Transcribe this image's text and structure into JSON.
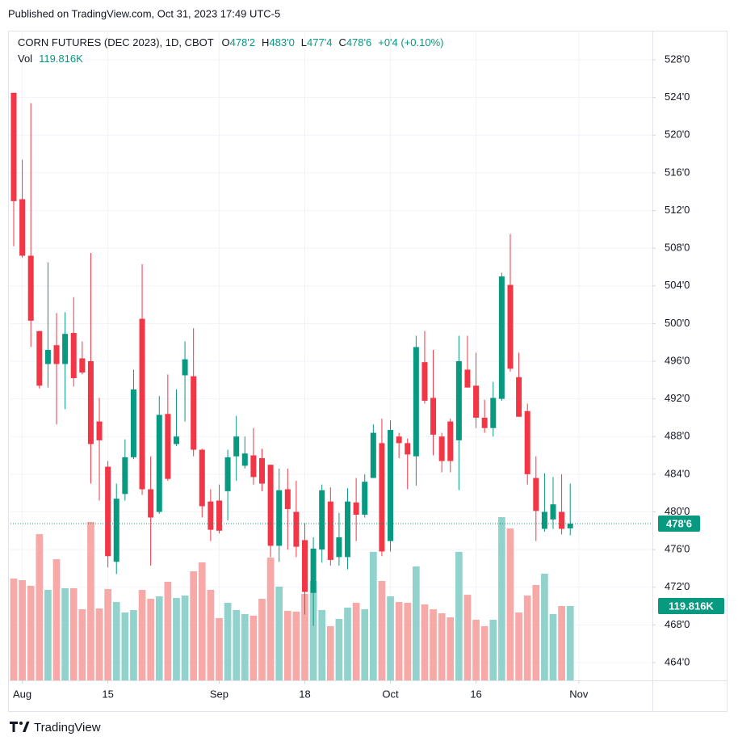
{
  "chart_data": {
    "type": "candlestick",
    "published": "Published on TradingView.com, Oct 31, 2023 17:49 UTC-5",
    "title": "CORN FUTURES (DEC 2023), 1D, CBOT",
    "legend": [
      {
        "key": "O",
        "value": 478.25,
        "label": "478'2"
      },
      {
        "key": "H",
        "value": 483,
        "label": "483'0"
      },
      {
        "key": "L",
        "value": 477.5,
        "label": "477'4"
      },
      {
        "key": "C",
        "value": 478.75,
        "label": "478'6"
      }
    ],
    "change": "+0'4 (+0.10%)",
    "volume_name": "Vol",
    "brand": "TradingView",
    "up_color": "#089981",
    "down_color": "#f23645",
    "up_volume_color": "#92d2cc",
    "down_volume_color": "#f7a9a7",
    "categories": [
      null,
      null,
      null,
      null,
      null,
      null,
      null,
      null,
      null,
      null,
      null,
      null,
      null,
      null,
      null,
      null,
      null,
      null,
      null,
      null,
      null,
      null,
      null,
      null,
      null,
      null,
      null,
      null,
      null,
      null,
      null,
      null,
      null,
      null,
      null,
      null,
      null,
      null,
      null,
      null,
      null,
      null,
      null,
      null,
      null,
      null,
      null,
      null,
      null,
      null,
      null,
      null,
      null,
      null,
      null,
      null,
      null,
      null,
      null,
      null,
      null,
      null,
      null,
      null,
      null,
      null
    ],
    "open": [
      524.5,
      513.2,
      507.2,
      499.2,
      495.7,
      497.7,
      495.7,
      499.0,
      496.3,
      496.0,
      489.6,
      484.8,
      474.7,
      481.9,
      485.8,
      500.5,
      482.4,
      480.0,
      490.4,
      487.2,
      494.5,
      494.4,
      486.6,
      481.1,
      481.2,
      482.2,
      485.9,
      484.9,
      486.0,
      485.7,
      485.0,
      476.4,
      482.4,
      480.0,
      477.0,
      471.4,
      476.0,
      481.1,
      475.2,
      475.2,
      481.0,
      479.7,
      483.6,
      487.3,
      476.9,
      488.0,
      487.3,
      485.9,
      495.9,
      492.1,
      488.0,
      489.6,
      487.6,
      495.1,
      493.4,
      490.0,
      488.9,
      492.0,
      504.1,
      494.3,
      490.7,
      483.6,
      478.2,
      479.2,
      480.0,
      478.25
    ],
    "high": [
      524.5,
      517.4,
      523.4,
      499.2,
      506.5,
      501.1,
      501.2,
      502.8,
      498.1,
      507.5,
      492.1,
      485.4,
      483.0,
      487.7,
      495.1,
      506.3,
      485.9,
      492.3,
      494.6,
      493.0,
      498.1,
      499.5,
      486.7,
      482.4,
      482.9,
      486.6,
      490.2,
      488.0,
      488.9,
      486.7,
      485.0,
      484.6,
      484.6,
      483.3,
      478.8,
      477.3,
      482.9,
      482.6,
      479.9,
      482.5,
      483.6,
      484.0,
      489.3,
      489.9,
      489.7,
      488.4,
      487.8,
      498.7,
      499.2,
      497.2,
      488.4,
      489.9,
      498.7,
      498.7,
      496.9,
      491.9,
      493.8,
      505.4,
      509.5,
      496.9,
      491.5,
      485.9,
      484.1,
      483.7,
      484.0,
      483.0
    ],
    "low": [
      508.2,
      507.0,
      497.5,
      493.1,
      493.2,
      489.3,
      490.9,
      493.3,
      494.6,
      483.0,
      481.2,
      474.1,
      473.4,
      481.2,
      485.6,
      481.8,
      474.3,
      479.8,
      483.3,
      487.0,
      489.6,
      485.9,
      479.4,
      476.9,
      477.7,
      479.1,
      483.3,
      484.6,
      482.9,
      482.2,
      475.2,
      474.7,
      476.0,
      475.2,
      469.1,
      467.9,
      474.6,
      474.3,
      474.3,
      473.9,
      476.9,
      479.4,
      483.6,
      475.3,
      475.8,
      485.7,
      482.4,
      482.8,
      491.5,
      486.0,
      484.2,
      484.2,
      482.3,
      493.2,
      488.9,
      488.4,
      488.0,
      491.8,
      494.9,
      490.1,
      482.9,
      476.9,
      477.9,
      478.2,
      477.6,
      477.5
    ],
    "close": [
      513.0,
      507.2,
      500.3,
      493.4,
      497.2,
      495.7,
      498.9,
      494.2,
      494.8,
      487.2,
      487.6,
      475.3,
      481.4,
      485.8,
      493.0,
      482.4,
      479.4,
      490.3,
      483.5,
      488.0,
      496.2,
      486.6,
      480.6,
      478.1,
      478.0,
      485.8,
      488.0,
      486.2,
      483.7,
      483.0,
      476.4,
      482.3,
      480.3,
      476.3,
      471.5,
      476.1,
      482.3,
      474.9,
      477.3,
      481.1,
      479.7,
      483.2,
      488.4,
      475.8,
      488.7,
      487.3,
      486.1,
      497.5,
      491.8,
      488.2,
      485.4,
      485.4,
      496.0,
      493.2,
      490.0,
      488.9,
      492.1,
      505.0,
      495.2,
      490.1,
      484.0,
      480.1,
      480.0,
      480.8,
      478.2,
      478.75
    ],
    "volume": [
      164100,
      161500,
      152400,
      235700,
      145900,
      195300,
      148500,
      148500,
      114600,
      255300,
      115900,
      147200,
      126300,
      109400,
      113300,
      145900,
      131500,
      135400,
      158900,
      132800,
      136700,
      175800,
      190100,
      145900,
      100300,
      125000,
      113300,
      106800,
      104200,
      131500,
      197900,
      151100,
      112000,
      110700,
      139300,
      160200,
      113300,
      87300,
      99000,
      117200,
      125000,
      114600,
      207100,
      160200,
      135400,
      126300,
      125000,
      183600,
      122400,
      114600,
      108100,
      101600,
      207100,
      138000,
      97700,
      87300,
      97700,
      263100,
      244800,
      109400,
      136700,
      153700,
      171900,
      106800,
      119800,
      119816
    ],
    "volume_value_labels": [
      null,
      null,
      null,
      null,
      null,
      null,
      null,
      null,
      null,
      null,
      null,
      null,
      null,
      null,
      null,
      null,
      null,
      null,
      null,
      null,
      null,
      null,
      null,
      null,
      null,
      null,
      null,
      null,
      null,
      null,
      null,
      null,
      null,
      null,
      null,
      null,
      null,
      null,
      null,
      null,
      null,
      null,
      null,
      null,
      null,
      null,
      null,
      null,
      null,
      null,
      null,
      null,
      null,
      null,
      null,
      null,
      null,
      null,
      null,
      null,
      null,
      null,
      null,
      null,
      null,
      "119.816K"
    ],
    "last_price": {
      "value": 478.75,
      "label": "478'6"
    },
    "xlim": [
      -0.66,
      74.6
    ],
    "xticks": [
      {
        "value": 1,
        "label": "Aug"
      },
      {
        "value": 11,
        "label": "15"
      },
      {
        "value": 24,
        "label": "Sep"
      },
      {
        "value": 34,
        "label": "18"
      },
      {
        "value": 44,
        "label": "Oct"
      },
      {
        "value": 54,
        "label": "16"
      },
      {
        "value": 66,
        "label": "Nov"
      }
    ],
    "ylim": [
      462.11,
      530.92
    ],
    "yticks": [
      {
        "value": 464,
        "label": "464'0"
      },
      {
        "value": 468,
        "label": "468'0"
      },
      {
        "value": 472,
        "label": "472'0"
      },
      {
        "value": 476,
        "label": "476'0"
      },
      {
        "value": 480,
        "label": "480'0"
      },
      {
        "value": 484,
        "label": "484'0"
      },
      {
        "value": 488,
        "label": "488'0"
      },
      {
        "value": 492,
        "label": "492'0"
      },
      {
        "value": 496,
        "label": "496'0"
      },
      {
        "value": 500,
        "label": "500'0"
      },
      {
        "value": 504,
        "label": "504'0"
      },
      {
        "value": 508,
        "label": "508'0"
      },
      {
        "value": 512,
        "label": "512'0"
      },
      {
        "value": 516,
        "label": "516'0"
      },
      {
        "value": 520,
        "label": "520'0"
      },
      {
        "value": 524,
        "label": "524'0"
      },
      {
        "value": 528,
        "label": "528'0"
      }
    ],
    "grid": true
  }
}
